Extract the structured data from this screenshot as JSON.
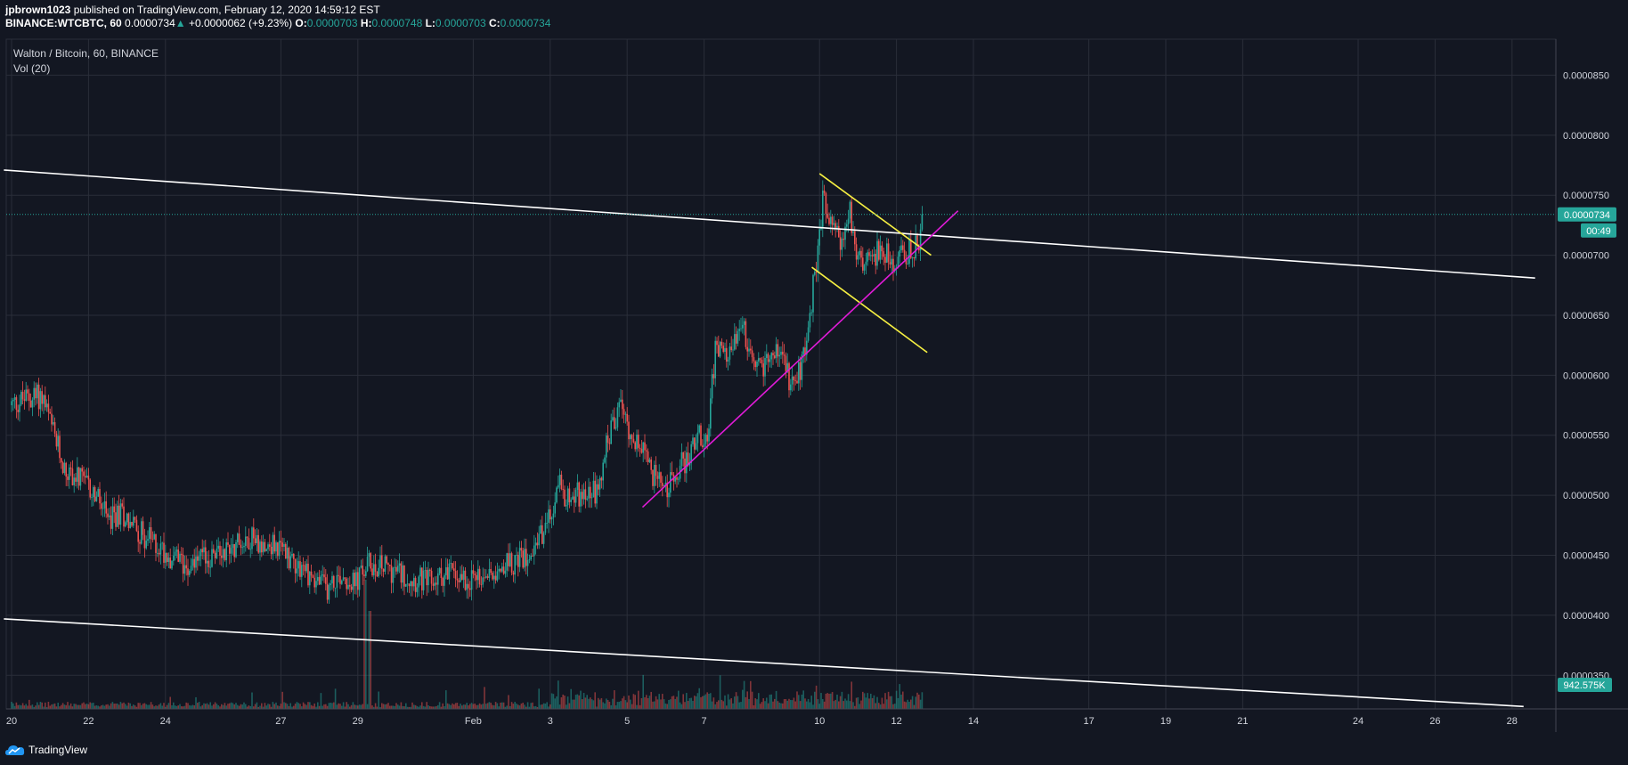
{
  "header": {
    "publisher": "jpbrown1023",
    "published_text": " published on TradingView.com, February 12, 2020 14:59:12 EST",
    "symbol": "BINANCE:WTCBTC, 60",
    "last": "0.0000734",
    "change": "+0.0000062 (+9.23%)",
    "open_label": "O:",
    "open": "0.0000703",
    "high_label": "H:",
    "high": "0.0000748",
    "low_label": "L:",
    "low": "0.0000703",
    "close_label": "C:",
    "close": "0.0000734"
  },
  "legend": {
    "title": "Walton / Bitcoin, 60, BINANCE",
    "volume": "Vol (20)"
  },
  "badges": {
    "price": "0.0000734",
    "countdown": "00:49",
    "volume": "942.575K"
  },
  "footer": {
    "brand": "TradingView"
  },
  "colors": {
    "background": "#131722",
    "grid": "#2a2e39",
    "up": "#26a69a",
    "down": "#ef5350",
    "trendline": "#ffffff",
    "flag": "#f5ef42",
    "support": "#e01bd7"
  },
  "chart_data": {
    "type": "candlestick",
    "symbol": "WTCBTC",
    "interval": "60",
    "ylim": [
      3.22e-05,
      8.8e-05
    ],
    "y_ticks": [
      "0.0000350",
      "0.0000400",
      "0.0000450",
      "0.0000500",
      "0.0000550",
      "0.0000600",
      "0.0000650",
      "0.0000700",
      "0.0000750",
      "0.0000800",
      "0.0000850"
    ],
    "x_ticks": [
      {
        "label": "20",
        "day": 0
      },
      {
        "label": "22",
        "day": 2
      },
      {
        "label": "24",
        "day": 4
      },
      {
        "label": "27",
        "day": 7
      },
      {
        "label": "29",
        "day": 9
      },
      {
        "label": "Feb",
        "day": 12
      },
      {
        "label": "3",
        "day": 14
      },
      {
        "label": "5",
        "day": 16
      },
      {
        "label": "7",
        "day": 18
      },
      {
        "label": "10",
        "day": 21
      },
      {
        "label": "12",
        "day": 23
      },
      {
        "label": "14",
        "day": 25
      },
      {
        "label": "17",
        "day": 28
      },
      {
        "label": "19",
        "day": 30
      },
      {
        "label": "21",
        "day": 32
      },
      {
        "label": "24",
        "day": 35
      },
      {
        "label": "26",
        "day": 37
      },
      {
        "label": "28",
        "day": 39
      }
    ],
    "last_price": 7.34e-05,
    "price_path": [
      [
        0.0,
        5.75e-05
      ],
      [
        0.3,
        5.8e-05
      ],
      [
        0.8,
        5.83e-05
      ],
      [
        1.0,
        5.6e-05
      ],
      [
        1.4,
        5.2e-05
      ],
      [
        1.8,
        5.12e-05
      ],
      [
        2.2,
        5e-05
      ],
      [
        2.5,
        4.78e-05
      ],
      [
        2.9,
        4.85e-05
      ],
      [
        3.3,
        4.7e-05
      ],
      [
        3.8,
        4.58e-05
      ],
      [
        4.4,
        4.43e-05
      ],
      [
        5.1,
        4.47e-05
      ],
      [
        5.7,
        4.58e-05
      ],
      [
        6.2,
        4.65e-05
      ],
      [
        6.9,
        4.57e-05
      ],
      [
        7.4,
        4.45e-05
      ],
      [
        7.8,
        4.32e-05
      ],
      [
        8.2,
        4.22e-05
      ],
      [
        8.6,
        4.35e-05
      ],
      [
        8.9,
        4.25e-05
      ],
      [
        9.3,
        4.43e-05
      ],
      [
        9.7,
        4.4e-05
      ],
      [
        10.1,
        4.35e-05
      ],
      [
        10.5,
        4.3e-05
      ],
      [
        10.9,
        4.27e-05
      ],
      [
        11.3,
        4.36e-05
      ],
      [
        12.0,
        4.3e-05
      ],
      [
        12.7,
        4.42e-05
      ],
      [
        13.2,
        4.45e-05
      ],
      [
        13.6,
        4.6e-05
      ],
      [
        14.0,
        4.8e-05
      ],
      [
        14.2,
        5.1e-05
      ],
      [
        14.5,
        4.95e-05
      ],
      [
        14.9,
        5.05e-05
      ],
      [
        15.2,
        5.02e-05
      ],
      [
        15.5,
        5.45e-05
      ],
      [
        15.8,
        5.75e-05
      ],
      [
        16.0,
        5.6e-05
      ],
      [
        16.4,
        5.35e-05
      ],
      [
        16.8,
        5.1e-05
      ],
      [
        17.0,
        5e-05
      ],
      [
        17.3,
        5.22e-05
      ],
      [
        17.6,
        5.32e-05
      ],
      [
        17.8,
        5.45e-05
      ],
      [
        18.1,
        5.55e-05
      ],
      [
        18.3,
        6.25e-05
      ],
      [
        18.6,
        6.1e-05
      ],
      [
        18.8,
        6.35e-05
      ],
      [
        19.0,
        6.4e-05
      ],
      [
        19.3,
        6e-05
      ],
      [
        19.6,
        6.1e-05
      ],
      [
        19.9,
        6.2e-05
      ],
      [
        20.1,
        6.05e-05
      ],
      [
        20.3,
        5.9e-05
      ],
      [
        20.6,
        6.15e-05
      ],
      [
        20.8,
        6.65e-05
      ],
      [
        21.0,
        7.15e-05
      ],
      [
        21.1,
        7.55e-05
      ],
      [
        21.3,
        7.25e-05
      ],
      [
        21.6,
        7.1e-05
      ],
      [
        21.8,
        7.35e-05
      ],
      [
        22.0,
        7e-05
      ],
      [
        22.3,
        6.9e-05
      ],
      [
        22.6,
        7.1e-05
      ],
      [
        22.9,
        6.9e-05
      ],
      [
        23.1,
        7e-05
      ],
      [
        23.4,
        7.05e-05
      ],
      [
        23.6,
        7.12e-05
      ],
      [
        23.7,
        7.34e-05
      ]
    ],
    "trendlines": [
      {
        "name": "upper-trendline",
        "color": "#ffffff",
        "points": [
          [
            -0.2,
            7.71e-05
          ],
          [
            39.6,
            6.81e-05
          ]
        ]
      },
      {
        "name": "lower-trendline",
        "color": "#ffffff",
        "points": [
          [
            -0.2,
            3.97e-05
          ],
          [
            39.3,
            3.24e-05
          ]
        ]
      },
      {
        "name": "flag-top",
        "color": "#f5ef42",
        "points": [
          [
            21.0,
            7.68e-05
          ],
          [
            23.9,
            7e-05
          ]
        ]
      },
      {
        "name": "flag-bottom",
        "color": "#f5ef42",
        "points": [
          [
            20.8,
            6.9e-05
          ],
          [
            23.8,
            6.19e-05
          ]
        ]
      },
      {
        "name": "support-line",
        "color": "#e01bd7",
        "points": [
          [
            16.4,
            4.9e-05
          ],
          [
            24.6,
            7.37e-05
          ]
        ]
      }
    ],
    "grid": true,
    "price_axis": "right",
    "time_axis": "bottom"
  }
}
